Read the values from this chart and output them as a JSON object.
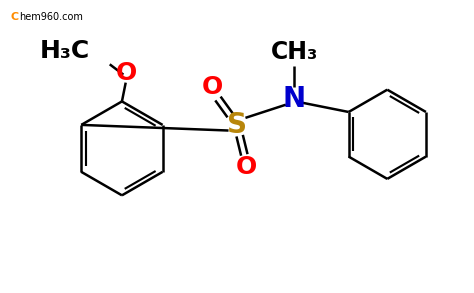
{
  "bg_color": "#ffffff",
  "bond_color": "#000000",
  "S_color": "#b8860b",
  "O_color": "#ff0000",
  "N_color": "#0000cd",
  "wm_C_color": "#ff8c00",
  "wm_rest_color": "#000000",
  "label_S": "S",
  "label_O": "O",
  "label_N": "N",
  "label_CH3": "CH₃",
  "label_H3C": "H₃C",
  "lw": 1.8,
  "fig_w": 4.74,
  "fig_h": 2.93,
  "dpi": 100
}
